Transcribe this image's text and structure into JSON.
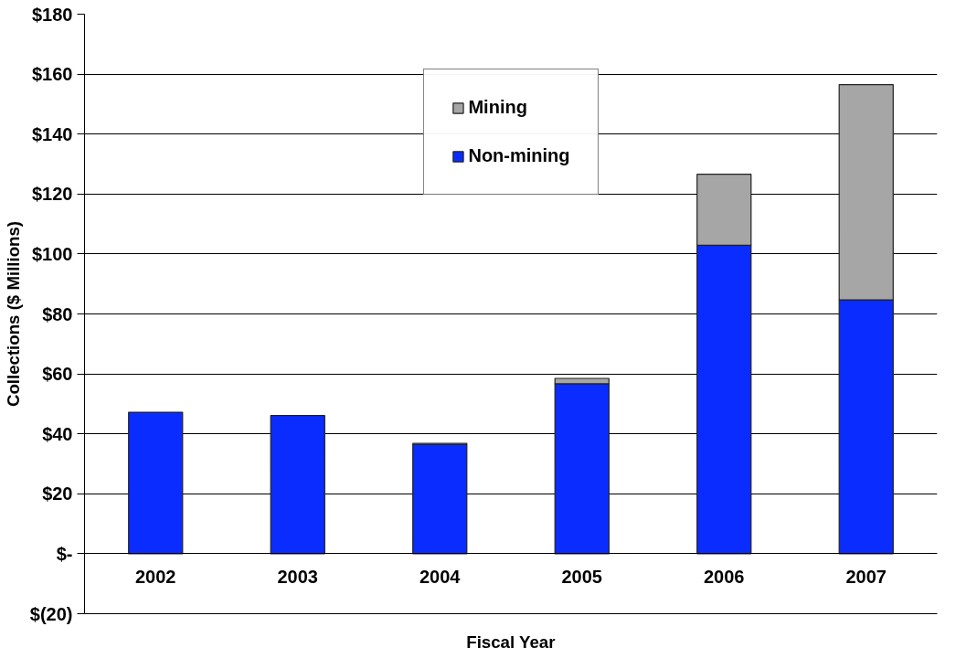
{
  "chart_data": {
    "type": "bar",
    "stacked": true,
    "xlabel": "Fiscal Year",
    "ylabel": "Collections ($ Millions)",
    "categories": [
      "2002",
      "2003",
      "2004",
      "2005",
      "2006",
      "2007"
    ],
    "series": [
      {
        "name": "Non-mining",
        "color": "#0a2cff",
        "values": [
          47.2,
          46.1,
          36.4,
          56.7,
          102.9,
          84.7
        ]
      },
      {
        "name": "Mining",
        "color": "#a6a6a6",
        "values": [
          null,
          null,
          0.4,
          1.8,
          23.7,
          71.8
        ]
      }
    ],
    "ylim": [
      -20,
      180
    ],
    "yticks": [
      {
        "value": -20,
        "label": "$(20)"
      },
      {
        "value": 0,
        "label": "$-"
      },
      {
        "value": 20,
        "label": "$20"
      },
      {
        "value": 40,
        "label": "$40"
      },
      {
        "value": 60,
        "label": "$60"
      },
      {
        "value": 80,
        "label": "$80"
      },
      {
        "value": 100,
        "label": "$100"
      },
      {
        "value": 120,
        "label": "$120"
      },
      {
        "value": 140,
        "label": "$140"
      },
      {
        "value": 160,
        "label": "$160"
      },
      {
        "value": 180,
        "label": "$180"
      }
    ],
    "grid": "y",
    "legend": "top"
  }
}
